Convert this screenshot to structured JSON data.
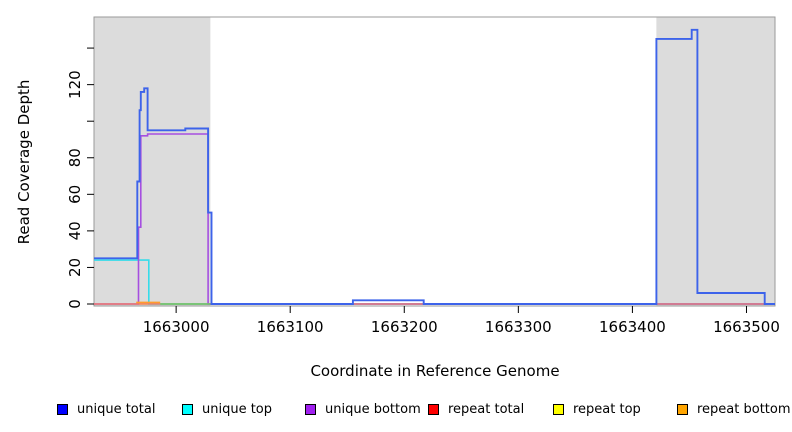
{
  "chart_data": {
    "type": "line",
    "title": "",
    "xlabel": "Coordinate in Reference Genome",
    "ylabel": "Read Coverage Depth",
    "xlim": [
      1662928,
      1663525
    ],
    "ylim": [
      0,
      157
    ],
    "x_ticks": [
      1663000,
      1663100,
      1663200,
      1663300,
      1663400,
      1663500
    ],
    "y_ticks": [
      0,
      20,
      40,
      60,
      80,
      100,
      120,
      140
    ],
    "y_tick_labels": [
      "0",
      "20",
      "40",
      "60",
      "80",
      "",
      "120",
      ""
    ],
    "grid": false,
    "legend_position": "bottom",
    "plot_background": "#ffffff",
    "box_color": "#9a9a9a",
    "shaded_regions": [
      {
        "x0": 1662928,
        "x1": 1663030,
        "color": "#dcdcdc"
      },
      {
        "x0": 1663421,
        "x1": 1663525,
        "color": "#dcdcdc"
      }
    ],
    "series": [
      {
        "name": "repeat top",
        "color": "#ffff00",
        "line_color": "#ffff00",
        "width": 1.4,
        "points": [
          [
            1662928,
            0
          ],
          [
            1663525,
            0
          ]
        ]
      },
      {
        "name": "unique top",
        "color": "#00ffff",
        "line_color": "#35dcea",
        "width": 1.6,
        "points": [
          [
            1662928,
            24
          ],
          [
            1662976,
            24
          ],
          [
            1662976,
            0
          ],
          [
            1663525,
            0
          ]
        ]
      },
      {
        "name": "unique bottom",
        "color": "#a020f0",
        "line_color": "#a64fe0",
        "width": 1.6,
        "points": [
          [
            1662928,
            0
          ],
          [
            1662967,
            0
          ],
          [
            1662967,
            42
          ],
          [
            1662969,
            42
          ],
          [
            1662969,
            92
          ],
          [
            1662975,
            92
          ],
          [
            1662975,
            93
          ],
          [
            1663028,
            93
          ],
          [
            1663028,
            0
          ],
          [
            1663525,
            0
          ]
        ]
      },
      {
        "name": "repeat total",
        "color": "#ff0000",
        "line_color": "#ef6a75",
        "width": 1.3,
        "points": [
          [
            1662928,
            0
          ],
          [
            1663525,
            0
          ]
        ]
      },
      {
        "name": "repeat bottom",
        "color": "#ffa500",
        "line_color": "#ff9d2e",
        "width": 1.8,
        "points": [
          [
            1662965,
            0.8
          ],
          [
            1662986,
            0.8
          ]
        ]
      },
      {
        "name": "unlabeled green segment",
        "color": "#66bb66",
        "line_color": "#6cc46c",
        "width": 1.5,
        "points": [
          [
            1662986,
            0
          ],
          [
            1663030,
            0
          ]
        ]
      },
      {
        "name": "unique total",
        "color": "#0000ff",
        "line_color": "#3d63ea",
        "width": 1.9,
        "points": [
          [
            1662928,
            25
          ],
          [
            1662966,
            25
          ],
          [
            1662966,
            67
          ],
          [
            1662968,
            67
          ],
          [
            1662968,
            106
          ],
          [
            1662969,
            106
          ],
          [
            1662969,
            116
          ],
          [
            1662972,
            116
          ],
          [
            1662972,
            118
          ],
          [
            1662975,
            118
          ],
          [
            1662975,
            95
          ],
          [
            1663008,
            95
          ],
          [
            1663008,
            96
          ],
          [
            1663028,
            96
          ],
          [
            1663028,
            50
          ],
          [
            1663031,
            50
          ],
          [
            1663031,
            0
          ],
          [
            1663155,
            0
          ],
          [
            1663155,
            2
          ],
          [
            1663217,
            2
          ],
          [
            1663217,
            0
          ],
          [
            1663421,
            0
          ],
          [
            1663421,
            145
          ],
          [
            1663452,
            145
          ],
          [
            1663452,
            150
          ],
          [
            1663457,
            150
          ],
          [
            1663457,
            6
          ],
          [
            1663516,
            6
          ],
          [
            1663516,
            0
          ],
          [
            1663525,
            0
          ]
        ]
      }
    ],
    "legend": [
      {
        "label": "unique total",
        "color": "#0000ff"
      },
      {
        "label": "unique top",
        "color": "#00ffff"
      },
      {
        "label": "unique bottom",
        "color": "#a020f0"
      },
      {
        "label": "repeat total",
        "color": "#ff0000"
      },
      {
        "label": "repeat top",
        "color": "#ffff00"
      },
      {
        "label": "repeat bottom",
        "color": "#ffa500"
      }
    ]
  },
  "layout_text": {
    "x_axis_title": "Coordinate in Reference Genome",
    "y_axis_title": "Read Coverage Depth"
  }
}
